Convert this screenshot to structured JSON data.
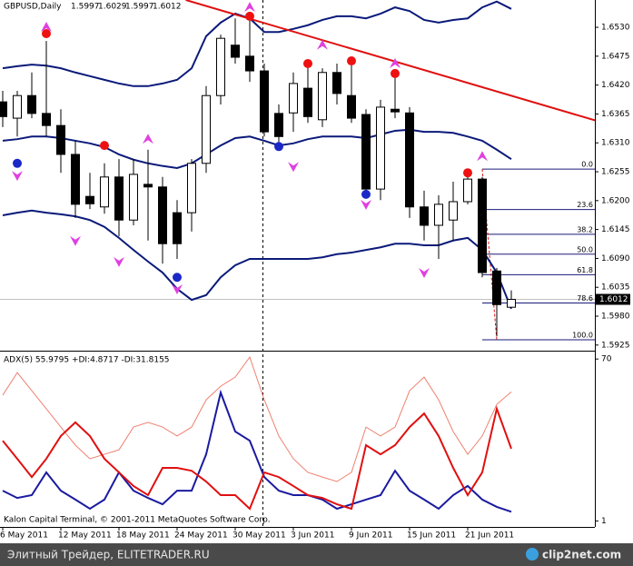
{
  "chart_data": {
    "type": "candlestick",
    "symbol": "GBPUSD,Daily",
    "categories": [
      "6 May 2011",
      null,
      null,
      null,
      "12 May 2011",
      null,
      null,
      null,
      "18 May 2011",
      null,
      null,
      null,
      "24 May 2011",
      null,
      null,
      null,
      "30 May 2011",
      null,
      null,
      null,
      "3 Jun 2011",
      null,
      null,
      null,
      "9 Jun 2011",
      null,
      null,
      null,
      "15 Jun 2011",
      null,
      null,
      null,
      "21 Jun 2011",
      null,
      null,
      null
    ],
    "open": [
      1.6388,
      1.6357,
      1.64,
      1.6366,
      1.6343,
      1.6288,
      1.6208,
      1.6188,
      1.6245,
      1.6163,
      1.6231,
      1.6226,
      1.6177,
      1.6177,
      1.6271,
      1.64,
      1.6496,
      1.6475,
      1.6447,
      1.6366,
      1.6367,
      1.6414,
      1.6354,
      1.6444,
      1.64,
      1.6364,
      1.6222,
      1.6374,
      1.6367,
      1.6188,
      1.6153,
      1.6163,
      1.6198,
      1.6241,
      1.6066,
      1.5997
    ],
    "high": [
      1.6409,
      1.6409,
      1.6444,
      1.6504,
      1.6374,
      1.6314,
      1.6253,
      1.6271,
      1.6279,
      1.6279,
      1.6297,
      1.6245,
      1.6201,
      1.6279,
      1.6418,
      1.6516,
      1.6547,
      1.6547,
      1.6461,
      1.6383,
      1.6444,
      1.6461,
      1.6452,
      1.6461,
      1.6461,
      1.6374,
      1.6392,
      1.6435,
      1.6378,
      1.6219,
      1.621,
      1.6236,
      1.6245,
      1.6245,
      1.6072,
      1.6029
    ],
    "low": [
      1.634,
      1.6322,
      1.6357,
      1.6322,
      1.6253,
      1.6167,
      1.6184,
      1.6175,
      1.6132,
      1.6153,
      1.6124,
      1.608,
      1.6089,
      1.6141,
      1.6253,
      1.6383,
      1.6461,
      1.6426,
      1.6322,
      1.6305,
      1.6331,
      1.6348,
      1.634,
      1.6383,
      1.6348,
      1.621,
      1.6201,
      1.6357,
      1.6167,
      1.6124,
      1.6089,
      1.6124,
      1.6193,
      1.6054,
      1.5942,
      1.5997
    ],
    "close": [
      1.636,
      1.64,
      1.6366,
      1.6343,
      1.6288,
      1.6193,
      1.6194,
      1.6245,
      1.6163,
      1.625,
      1.6226,
      1.6118,
      1.6118,
      1.6271,
      1.64,
      1.6509,
      1.6473,
      1.6447,
      1.6331,
      1.6322,
      1.6423,
      1.636,
      1.6444,
      1.6404,
      1.6357,
      1.6222,
      1.6378,
      1.6369,
      1.6188,
      1.6153,
      1.6193,
      1.6198,
      1.6241,
      1.6063,
      1.6002,
      1.6012
    ],
    "bands": {
      "color": "#0b1a7a",
      "series": [
        {
          "values": [
            1.6452,
            1.6456,
            1.6459,
            1.6457,
            1.6452,
            1.6444,
            1.6437,
            1.643,
            1.6423,
            1.6418,
            1.6418,
            1.6423,
            1.643,
            1.6452,
            1.6513,
            1.6539,
            1.6556,
            1.6547,
            1.6521,
            1.6521,
            1.6527,
            1.6534,
            1.6544,
            1.6551,
            1.6551,
            1.6547,
            1.6556,
            1.6568,
            1.6561,
            1.6544,
            1.6539,
            1.6544,
            1.6547,
            1.6568,
            1.6579,
            1.6565
          ]
        },
        {
          "values": [
            1.6314,
            1.6317,
            1.6322,
            1.6322,
            1.6319,
            1.6314,
            1.6309,
            1.6302,
            1.6288,
            1.6278,
            1.6271,
            1.6266,
            1.6262,
            1.6271,
            1.6288,
            1.6305,
            1.6319,
            1.6322,
            1.6314,
            1.6305,
            1.6309,
            1.6317,
            1.6322,
            1.6322,
            1.6322,
            1.6319,
            1.6326,
            1.6333,
            1.6335,
            1.6331,
            1.6331,
            1.6329,
            1.6322,
            1.6314,
            1.6297,
            1.6279
          ]
        },
        {
          "values": [
            1.6172,
            1.6177,
            1.6181,
            1.6177,
            1.6174,
            1.617,
            1.6163,
            1.615,
            1.6129,
            1.6106,
            1.6084,
            1.6063,
            1.6032,
            1.6011,
            1.602,
            1.6054,
            1.6077,
            1.6089,
            1.6089,
            1.6089,
            1.6089,
            1.6089,
            1.6092,
            1.6098,
            1.6101,
            1.6106,
            1.6111,
            1.6118,
            1.6118,
            1.6115,
            1.6115,
            1.6124,
            1.6129,
            1.6106,
            1.6063,
            1.5994
          ]
        }
      ]
    },
    "red_dots": {
      "color": "#ee1111",
      "x": [
        3,
        7,
        17,
        21,
        24,
        27,
        32
      ],
      "y": [
        1.6518,
        1.6305,
        1.6551,
        1.6461,
        1.6466,
        1.6442,
        1.6253
      ]
    },
    "blue_dots": {
      "color": "#1a28c8",
      "x": [
        1,
        12,
        19,
        25
      ],
      "y": [
        1.6271,
        1.6054,
        1.6303,
        1.6212
      ]
    },
    "up_arrows": {
      "color": "#e040e0",
      "x": [
        3,
        10,
        17,
        22,
        27,
        33
      ],
      "y": [
        1.653,
        1.6317,
        1.6568,
        1.6496,
        1.6461,
        1.6284
      ]
    },
    "down_arrows": {
      "color": "#e040e0",
      "x": [
        1,
        5,
        8,
        12,
        20,
        25,
        29
      ],
      "y": [
        1.6248,
        1.6124,
        1.6084,
        1.6032,
        1.6265,
        1.6193,
        1.6063
      ]
    },
    "trendline": {
      "color": "#e01010",
      "x": [
        12.6,
        40.75
      ],
      "y": [
        1.6582,
        1.6353
      ]
    },
    "fibonacci": {
      "color": "#1a1a7a",
      "start": 33,
      "end": 34,
      "levels": [
        {
          "value": 0,
          "label": "0.0"
        },
        23.6,
        38.2,
        {
          "value": 50,
          "label": "50.0"
        },
        61.8,
        78.6,
        {
          "value": 100,
          "label": "100.0"
        }
      ],
      "prices": [
        1.626,
        1.6183,
        1.6136,
        1.6098,
        1.6059,
        1.6005,
        1.5935
      ]
    },
    "ylim": [
      1.5916,
      1.6582
    ],
    "yticks": [
      {
        "value": 1.653,
        "label": "1.6530"
      },
      {
        "value": 1.6475,
        "label": "1.6475"
      },
      {
        "value": 1.642,
        "label": "1.6420"
      },
      {
        "value": 1.6365,
        "label": "1.6365"
      },
      {
        "value": 1.631,
        "label": "1.6310"
      },
      {
        "value": 1.6255,
        "label": "1.6255"
      },
      {
        "value": 1.62,
        "label": "1.6200"
      },
      {
        "value": 1.6145,
        "label": "1.6145"
      },
      {
        "value": 1.609,
        "label": "1.6090"
      },
      {
        "value": 1.6035,
        "label": "1.6035"
      },
      {
        "value": 1.598,
        "label": "1.5980"
      },
      {
        "value": 1.5925,
        "label": "1.5925"
      }
    ],
    "indicator": {
      "label": "ADX(5) 55.9795 +DI:4.8717 -DI:31.8155",
      "ylim": [
        0,
        72
      ],
      "yticks": [
        70,
        1
      ],
      "series": [
        {
          "color": "#f08070",
          "values": [
            54.6,
            64.2,
            56.5,
            48.8,
            41.0,
            33.3,
            27.5,
            29.4,
            31.3,
            41.0,
            43.0,
            41.0,
            37.2,
            41.0,
            52.6,
            58.4,
            62.3,
            70.8,
            52.6,
            37.2,
            27.5,
            21.7,
            19.7,
            17.8,
            21.7,
            41.0,
            37.2,
            41.0,
            56.5,
            62.3,
            52.6,
            39.1,
            29.4,
            37.2,
            50.7,
            56.0
          ]
        },
        {
          "color": "#1a1aa0",
          "values": [
            13.9,
            10.8,
            12.0,
            21.7,
            13.9,
            10.1,
            6.2,
            10.1,
            21.7,
            13.9,
            10.8,
            8.1,
            13.9,
            13.9,
            29.4,
            55.7,
            39.1,
            35.2,
            19.7,
            13.9,
            12.0,
            12.0,
            10.1,
            6.2,
            8.1,
            10.1,
            12.0,
            22.4,
            13.9,
            10.1,
            6.2,
            12.0,
            15.9,
            10.1,
            7.0,
            4.9
          ]
        },
        {
          "color": "#e01010",
          "values": [
            35.2,
            27.5,
            19.7,
            27.5,
            37.2,
            43.0,
            37.2,
            27.5,
            21.7,
            15.9,
            12.0,
            23.6,
            23.6,
            22.4,
            17.8,
            12.0,
            12.0,
            6.2,
            21.7,
            19.7,
            15.9,
            12.0,
            10.8,
            8.1,
            6.2,
            33.3,
            29.4,
            33.3,
            41.0,
            46.8,
            37.2,
            23.6,
            12.0,
            21.7,
            48.8,
            31.8
          ]
        }
      ]
    },
    "copyright": "Kalon Capital Terminal, © 2001-2011 MetaQuotes Software Corp.",
    "watermark": "Элитный Трейдер, ELITETRADER.RU",
    "brand": "clip2net.com"
  }
}
